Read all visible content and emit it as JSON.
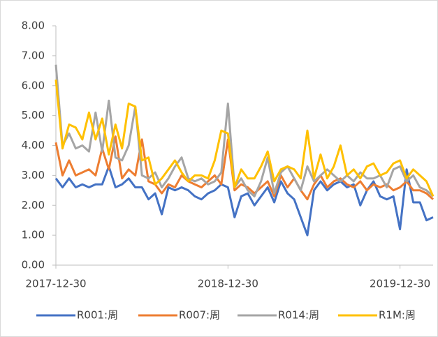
{
  "chart_data": {
    "type": "line",
    "categories": [
      "2017-12-30",
      null,
      null,
      null,
      null,
      null,
      null,
      null,
      null,
      null,
      null,
      null,
      null,
      null,
      null,
      null,
      null,
      null,
      null,
      null,
      null,
      null,
      null,
      null,
      null,
      null,
      "2018-12-30",
      null,
      null,
      null,
      null,
      null,
      null,
      null,
      null,
      null,
      null,
      null,
      null,
      null,
      null,
      null,
      null,
      null,
      null,
      null,
      null,
      null,
      null,
      null,
      null,
      null,
      "2019-12-30",
      null,
      null,
      null,
      null,
      null
    ],
    "series": [
      {
        "name": "R001:周",
        "color": "#4472c4",
        "values": [
          2.9,
          2.6,
          2.9,
          2.6,
          2.7,
          2.6,
          2.7,
          2.7,
          3.3,
          2.6,
          2.7,
          2.9,
          2.6,
          2.6,
          2.2,
          2.4,
          1.7,
          2.6,
          2.5,
          2.6,
          2.5,
          2.3,
          2.2,
          2.4,
          2.5,
          2.7,
          2.6,
          1.6,
          2.3,
          2.4,
          2.0,
          2.3,
          2.6,
          2.1,
          2.8,
          2.4,
          2.2,
          1.6,
          1.0,
          2.5,
          2.8,
          2.5,
          2.7,
          2.8,
          2.6,
          2.7,
          2.0,
          2.5,
          2.8,
          2.3,
          2.2,
          2.3,
          1.2,
          3.2,
          2.1,
          2.1,
          1.5,
          1.6
        ]
      },
      {
        "name": "R007:周",
        "color": "#ed7d31",
        "values": [
          4.1,
          3.0,
          3.5,
          3.0,
          3.1,
          3.2,
          3.0,
          3.9,
          3.2,
          4.3,
          2.9,
          3.2,
          3.0,
          4.2,
          2.8,
          2.7,
          2.4,
          2.7,
          2.6,
          3.0,
          2.8,
          2.7,
          2.6,
          2.8,
          3.0,
          2.7,
          4.2,
          2.5,
          2.7,
          2.6,
          2.4,
          2.6,
          2.8,
          2.3,
          3.0,
          2.6,
          2.9,
          2.5,
          2.2,
          2.7,
          3.0,
          2.6,
          2.8,
          2.9,
          2.7,
          2.6,
          2.8,
          2.5,
          2.7,
          2.6,
          2.7,
          2.5,
          2.6,
          2.8,
          2.5,
          2.5,
          2.4,
          2.2
        ]
      },
      {
        "name": "R014:周",
        "color": "#a5a5a5",
        "values": [
          6.7,
          4.0,
          4.4,
          3.9,
          4.0,
          3.8,
          5.1,
          3.8,
          5.5,
          3.6,
          3.5,
          4.0,
          5.3,
          3.0,
          2.9,
          3.1,
          2.6,
          2.9,
          3.3,
          3.6,
          2.9,
          2.8,
          2.9,
          2.7,
          2.8,
          3.1,
          5.4,
          2.6,
          2.9,
          2.5,
          2.3,
          2.8,
          3.6,
          2.4,
          3.1,
          3.3,
          2.9,
          2.5,
          3.3,
          2.8,
          3.0,
          3.2,
          3.0,
          2.8,
          3.0,
          2.8,
          3.1,
          2.9,
          2.9,
          3.0,
          2.6,
          3.2,
          3.3,
          2.8,
          3.0,
          2.6,
          2.5,
          2.3
        ]
      },
      {
        "name": "R1M:周",
        "color": "#ffc000",
        "values": [
          6.2,
          3.9,
          4.7,
          4.6,
          4.2,
          5.1,
          4.2,
          4.9,
          3.7,
          4.7,
          3.9,
          5.4,
          5.3,
          3.5,
          3.6,
          2.7,
          2.9,
          3.2,
          3.5,
          3.1,
          2.8,
          3.0,
          3.0,
          2.9,
          3.5,
          4.5,
          4.4,
          2.6,
          3.2,
          2.9,
          2.9,
          3.3,
          3.8,
          2.8,
          3.2,
          3.3,
          3.2,
          2.9,
          4.5,
          2.9,
          3.7,
          2.9,
          3.3,
          4.0,
          3.0,
          3.2,
          2.9,
          3.3,
          3.4,
          3.0,
          3.1,
          3.4,
          3.5,
          2.9,
          3.2,
          3.0,
          2.8,
          2.3
        ]
      }
    ],
    "ylim": [
      0,
      8
    ],
    "yticks": [
      {
        "value": 0,
        "label": "0.00"
      },
      {
        "value": 1,
        "label": "1.00"
      },
      {
        "value": 2,
        "label": "2.00"
      },
      {
        "value": 3,
        "label": "3.00"
      },
      {
        "value": 4,
        "label": "4.00"
      },
      {
        "value": 5,
        "label": "5.00"
      },
      {
        "value": 6,
        "label": "6.00"
      },
      {
        "value": 7,
        "label": "7.00"
      },
      {
        "value": 8,
        "label": "8.00"
      }
    ],
    "legend": "bottom"
  }
}
